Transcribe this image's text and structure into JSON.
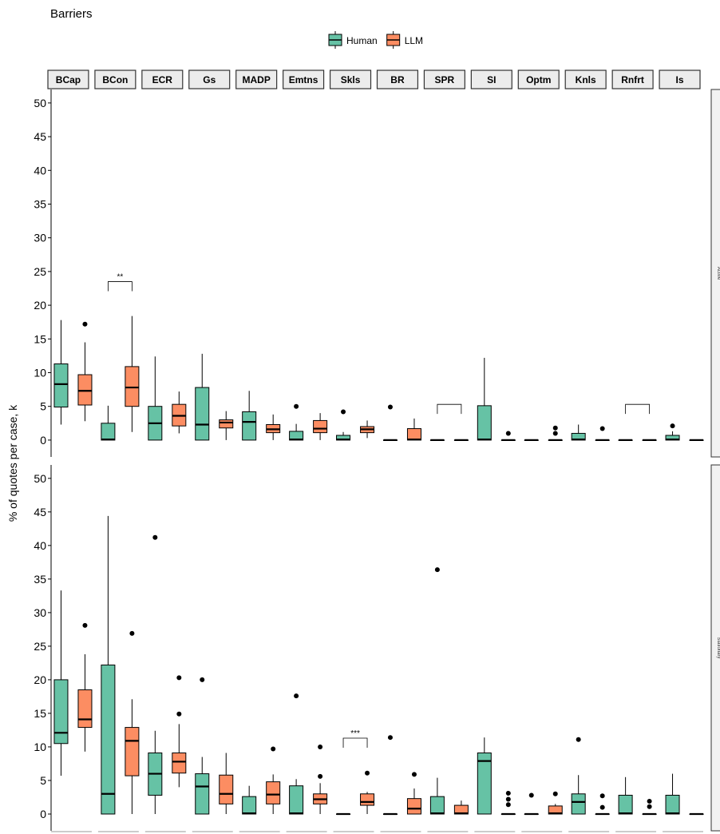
{
  "chart_data": {
    "type": "boxplot",
    "title": "Barriers",
    "ylabel": "% of quotes per case, k",
    "ylim": [
      -2.5,
      52
    ],
    "yticks": [
      0,
      5,
      10,
      15,
      20,
      25,
      30,
      35,
      40,
      45,
      50
    ],
    "categories": [
      "BCap",
      "BCon",
      "ECR",
      "Gs",
      "MADP",
      "Emtns",
      "Skls",
      "BR",
      "SPR",
      "SI",
      "Optm",
      "Knls",
      "Rnfrt",
      "Is"
    ],
    "legend": {
      "position": "top",
      "entries": [
        {
          "name": "Human",
          "color": "#66c2a5"
        },
        {
          "name": "LLM",
          "color": "#fc8d62"
        }
      ]
    },
    "panels": [
      {
        "strip": "Active",
        "significance": [
          {
            "category": "BCon",
            "label": "**",
            "y": 23.5
          },
          {
            "category": "SPR",
            "label": "",
            "y": 5.3
          },
          {
            "category": "Rnfrt",
            "label": "",
            "y": 5.3
          }
        ],
        "series": [
          {
            "name": "Human",
            "boxes": [
              {
                "min": 2.3,
                "q1": 4.9,
                "median": 8.3,
                "q3": 11.3,
                "max": 17.8,
                "outliers": []
              },
              {
                "min": 0,
                "q1": 0,
                "median": 0.1,
                "q3": 2.5,
                "max": 5.1,
                "outliers": []
              },
              {
                "min": 0,
                "q1": 0,
                "median": 2.5,
                "q3": 5.0,
                "max": 12.4,
                "outliers": []
              },
              {
                "min": 0,
                "q1": 0,
                "median": 2.3,
                "q3": 7.8,
                "max": 12.8,
                "outliers": []
              },
              {
                "min": 0,
                "q1": 0,
                "median": 2.7,
                "q3": 4.2,
                "max": 7.3,
                "outliers": []
              },
              {
                "min": 0,
                "q1": 0,
                "median": 0.1,
                "q3": 1.3,
                "max": 2.4,
                "outliers": [
                  5.0
                ]
              },
              {
                "min": 0,
                "q1": 0,
                "median": 0.1,
                "q3": 0.7,
                "max": 1.2,
                "outliers": [
                  4.2
                ]
              },
              {
                "min": 0,
                "q1": 0,
                "median": 0,
                "q3": 0,
                "max": 0,
                "outliers": [
                  4.9
                ]
              },
              {
                "min": 0,
                "q1": 0,
                "median": 0,
                "q3": 0,
                "max": 0,
                "outliers": []
              },
              {
                "min": 0,
                "q1": 0,
                "median": 0.1,
                "q3": 5.1,
                "max": 12.2,
                "outliers": []
              },
              {
                "min": 0,
                "q1": 0,
                "median": 0,
                "q3": 0,
                "max": 0,
                "outliers": []
              },
              {
                "min": 0,
                "q1": 0,
                "median": 0.1,
                "q3": 1.0,
                "max": 2.3,
                "outliers": []
              },
              {
                "min": 0,
                "q1": 0,
                "median": 0,
                "q3": 0,
                "max": 0,
                "outliers": []
              },
              {
                "min": 0,
                "q1": 0,
                "median": 0.1,
                "q3": 0.7,
                "max": 1.3,
                "outliers": [
                  2.1
                ]
              }
            ]
          },
          {
            "name": "LLM",
            "boxes": [
              {
                "min": 2.8,
                "q1": 5.2,
                "median": 7.3,
                "q3": 9.7,
                "max": 14.5,
                "outliers": [
                  17.2
                ]
              },
              {
                "min": 1.2,
                "q1": 5.0,
                "median": 7.8,
                "q3": 10.9,
                "max": 18.4,
                "outliers": []
              },
              {
                "min": 1.0,
                "q1": 2.1,
                "median": 3.6,
                "q3": 5.3,
                "max": 7.2,
                "outliers": []
              },
              {
                "min": 0,
                "q1": 1.8,
                "median": 2.6,
                "q3": 3.0,
                "max": 4.3,
                "outliers": []
              },
              {
                "min": 0,
                "q1": 1.1,
                "median": 1.6,
                "q3": 2.3,
                "max": 3.8,
                "outliers": []
              },
              {
                "min": 0,
                "q1": 1.1,
                "median": 1.7,
                "q3": 2.9,
                "max": 4.0,
                "outliers": []
              },
              {
                "min": 0.3,
                "q1": 1.1,
                "median": 1.6,
                "q3": 2.0,
                "max": 2.9,
                "outliers": []
              },
              {
                "min": 0,
                "q1": 0,
                "median": 0.1,
                "q3": 1.7,
                "max": 3.2,
                "outliers": []
              },
              {
                "min": 0,
                "q1": 0,
                "median": 0,
                "q3": 0,
                "max": 0,
                "outliers": []
              },
              {
                "min": 0,
                "q1": 0,
                "median": 0,
                "q3": 0,
                "max": 0,
                "outliers": [
                  1.0
                ]
              },
              {
                "min": 0,
                "q1": 0,
                "median": 0,
                "q3": 0,
                "max": 0,
                "outliers": [
                  1.0,
                  1.8
                ]
              },
              {
                "min": 0,
                "q1": 0,
                "median": 0,
                "q3": 0,
                "max": 0,
                "outliers": [
                  1.7
                ]
              },
              {
                "min": 0,
                "q1": 0,
                "median": 0,
                "q3": 0,
                "max": 0,
                "outliers": []
              },
              {
                "min": 0,
                "q1": 0,
                "median": 0,
                "q3": 0,
                "max": 0,
                "outliers": []
              }
            ]
          }
        ]
      },
      {
        "strip": "Stationary",
        "significance": [
          {
            "category": "Skls",
            "label": "***",
            "y": 11.3
          }
        ],
        "series": [
          {
            "name": "Human",
            "boxes": [
              {
                "min": 5.7,
                "q1": 10.5,
                "median": 12.1,
                "q3": 20.0,
                "max": 33.3,
                "outliers": []
              },
              {
                "min": 0,
                "q1": 0,
                "median": 3.0,
                "q3": 22.2,
                "max": 44.4,
                "outliers": []
              },
              {
                "min": 0,
                "q1": 2.8,
                "median": 6.0,
                "q3": 9.1,
                "max": 12.4,
                "outliers": [
                  41.2
                ]
              },
              {
                "min": 0,
                "q1": 0,
                "median": 4.1,
                "q3": 6.0,
                "max": 8.5,
                "outliers": [
                  20.0
                ]
              },
              {
                "min": 0,
                "q1": 0,
                "median": 0.1,
                "q3": 2.6,
                "max": 4.2,
                "outliers": []
              },
              {
                "min": 0,
                "q1": 0,
                "median": 0.1,
                "q3": 4.2,
                "max": 5.2,
                "outliers": [
                  17.6
                ]
              },
              {
                "min": 0,
                "q1": 0,
                "median": 0,
                "q3": 0,
                "max": 0,
                "outliers": []
              },
              {
                "min": 0,
                "q1": 0,
                "median": 0,
                "q3": 0,
                "max": 0,
                "outliers": [
                  11.4
                ]
              },
              {
                "min": 0,
                "q1": 0,
                "median": 0.1,
                "q3": 2.6,
                "max": 5.4,
                "outliers": [
                  36.4
                ]
              },
              {
                "min": 0,
                "q1": 0,
                "median": 7.9,
                "q3": 9.1,
                "max": 11.4,
                "outliers": []
              },
              {
                "min": 0,
                "q1": 0,
                "median": 0,
                "q3": 0,
                "max": 0,
                "outliers": [
                  2.8
                ]
              },
              {
                "min": 0,
                "q1": 0,
                "median": 1.8,
                "q3": 3.0,
                "max": 5.8,
                "outliers": [
                  11.1
                ]
              },
              {
                "min": 0,
                "q1": 0,
                "median": 0.1,
                "q3": 2.8,
                "max": 5.5,
                "outliers": []
              },
              {
                "min": 0,
                "q1": 0,
                "median": 0.1,
                "q3": 2.8,
                "max": 6.0,
                "outliers": []
              }
            ]
          },
          {
            "name": "LLM",
            "boxes": [
              {
                "min": 9.3,
                "q1": 12.9,
                "median": 14.1,
                "q3": 18.5,
                "max": 23.8,
                "outliers": [
                  28.1
                ]
              },
              {
                "min": 0,
                "q1": 5.7,
                "median": 10.9,
                "q3": 12.9,
                "max": 17.1,
                "outliers": [
                  26.9
                ]
              },
              {
                "min": 4.0,
                "q1": 6.1,
                "median": 7.8,
                "q3": 9.1,
                "max": 13.4,
                "outliers": [
                  14.9,
                  20.3
                ]
              },
              {
                "min": 0,
                "q1": 1.5,
                "median": 3.0,
                "q3": 5.8,
                "max": 9.1,
                "outliers": []
              },
              {
                "min": 0,
                "q1": 1.5,
                "median": 2.9,
                "q3": 4.8,
                "max": 5.9,
                "outliers": [
                  9.7
                ]
              },
              {
                "min": 0,
                "q1": 1.5,
                "median": 2.2,
                "q3": 3.0,
                "max": 4.6,
                "outliers": [
                  5.6,
                  10.0
                ]
              },
              {
                "min": 0,
                "q1": 1.3,
                "median": 1.8,
                "q3": 3.0,
                "max": 3.3,
                "outliers": [
                  6.1
                ]
              },
              {
                "min": 0,
                "q1": 0,
                "median": 0.8,
                "q3": 2.3,
                "max": 3.8,
                "outliers": [
                  5.9
                ]
              },
              {
                "min": 0,
                "q1": 0,
                "median": 0.1,
                "q3": 1.3,
                "max": 2.0,
                "outliers": []
              },
              {
                "min": 0,
                "q1": 0,
                "median": 0,
                "q3": 0,
                "max": 0,
                "outliers": [
                  1.4,
                  2.2,
                  3.1
                ]
              },
              {
                "min": 0,
                "q1": 0,
                "median": 0.1,
                "q3": 1.2,
                "max": 1.5,
                "outliers": [
                  3.0
                ]
              },
              {
                "min": 0,
                "q1": 0,
                "median": 0,
                "q3": 0,
                "max": 0,
                "outliers": [
                  1.0,
                  2.7
                ]
              },
              {
                "min": 0,
                "q1": 0,
                "median": 0,
                "q3": 0,
                "max": 0,
                "outliers": [
                  1.1,
                  1.9
                ]
              },
              {
                "min": 0,
                "q1": 0,
                "median": 0,
                "q3": 0,
                "max": 0,
                "outliers": []
              }
            ]
          }
        ]
      }
    ]
  }
}
